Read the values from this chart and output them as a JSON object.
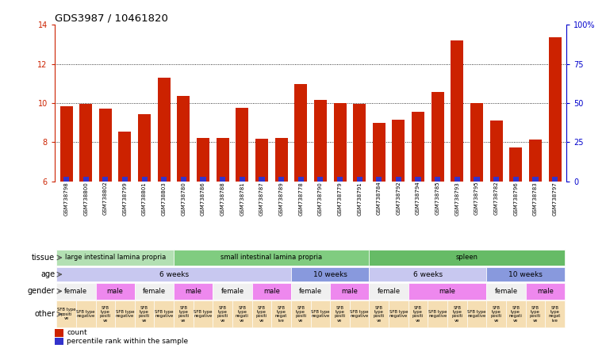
{
  "title": "GDS3987 / 10461820",
  "samples": [
    "GSM738798",
    "GSM738800",
    "GSM738802",
    "GSM738799",
    "GSM738801",
    "GSM738803",
    "GSM738780",
    "GSM738786",
    "GSM738788",
    "GSM738781",
    "GSM738787",
    "GSM738789",
    "GSM738778",
    "GSM738790",
    "GSM738779",
    "GSM738791",
    "GSM738784",
    "GSM738792",
    "GSM738794",
    "GSM738785",
    "GSM738793",
    "GSM738795",
    "GSM738782",
    "GSM738796",
    "GSM738783",
    "GSM738797"
  ],
  "count_values": [
    9.85,
    9.95,
    9.72,
    8.55,
    9.45,
    11.3,
    10.35,
    8.22,
    8.22,
    9.75,
    8.18,
    8.22,
    10.95,
    10.18,
    10.0,
    9.95,
    9.0,
    9.15,
    9.55,
    10.55,
    13.2,
    9.98,
    9.1,
    7.75,
    8.15,
    13.35
  ],
  "percentile_heights": [
    0.18,
    0.18,
    0.18,
    0.18,
    0.18,
    0.18,
    0.18,
    0.18,
    0.18,
    0.18,
    0.18,
    0.18,
    0.18,
    0.18,
    0.18,
    0.18,
    0.18,
    0.18,
    0.18,
    0.18,
    0.18,
    0.18,
    0.18,
    0.18,
    0.18,
    0.18
  ],
  "ylim": [
    6,
    14
  ],
  "yticks": [
    6,
    8,
    10,
    12,
    14
  ],
  "right_yticks": [
    0,
    25,
    50,
    75,
    100
  ],
  "bar_color": "#cc2200",
  "percentile_color": "#3333cc",
  "tissue_groups": [
    {
      "label": "large intestinal lamina propria",
      "start": 0,
      "end": 5,
      "color": "#b3e0b3"
    },
    {
      "label": "small intestinal lamina propria",
      "start": 6,
      "end": 15,
      "color": "#80cc80"
    },
    {
      "label": "spleen",
      "start": 16,
      "end": 25,
      "color": "#66bb66"
    }
  ],
  "age_groups": [
    {
      "label": "6 weeks",
      "start": 0,
      "end": 11,
      "color": "#c8c8f0"
    },
    {
      "label": "10 weeks",
      "start": 12,
      "end": 15,
      "color": "#8899dd"
    },
    {
      "label": "6 weeks",
      "start": 16,
      "end": 21,
      "color": "#c8c8f0"
    },
    {
      "label": "10 weeks",
      "start": 22,
      "end": 25,
      "color": "#8899dd"
    }
  ],
  "gender_groups": [
    {
      "label": "female",
      "start": 0,
      "end": 1,
      "color": "#f0f0f0"
    },
    {
      "label": "male",
      "start": 2,
      "end": 3,
      "color": "#ee88ee"
    },
    {
      "label": "female",
      "start": 4,
      "end": 5,
      "color": "#f0f0f0"
    },
    {
      "label": "male",
      "start": 6,
      "end": 7,
      "color": "#ee88ee"
    },
    {
      "label": "female",
      "start": 8,
      "end": 9,
      "color": "#f0f0f0"
    },
    {
      "label": "male",
      "start": 10,
      "end": 11,
      "color": "#ee88ee"
    },
    {
      "label": "female",
      "start": 12,
      "end": 13,
      "color": "#f0f0f0"
    },
    {
      "label": "male",
      "start": 14,
      "end": 15,
      "color": "#ee88ee"
    },
    {
      "label": "female",
      "start": 16,
      "end": 17,
      "color": "#f0f0f0"
    },
    {
      "label": "male",
      "start": 18,
      "end": 21,
      "color": "#ee88ee"
    },
    {
      "label": "female",
      "start": 22,
      "end": 23,
      "color": "#f0f0f0"
    },
    {
      "label": "male",
      "start": 24,
      "end": 25,
      "color": "#ee88ee"
    }
  ],
  "other_groups": [
    {
      "label": "SFB type\npositi\nve",
      "start": 0,
      "end": 0,
      "color": "#f5deb3"
    },
    {
      "label": "SFB type\nnegative",
      "start": 1,
      "end": 1,
      "color": "#f5deb3"
    },
    {
      "label": "SFB\ntype\npositi\nve",
      "start": 2,
      "end": 2,
      "color": "#f5deb3"
    },
    {
      "label": "SFB type\nnegative",
      "start": 3,
      "end": 3,
      "color": "#f5deb3"
    },
    {
      "label": "SFB\ntype\npositi\nve",
      "start": 4,
      "end": 4,
      "color": "#f5deb3"
    },
    {
      "label": "SFB type\nnegative",
      "start": 5,
      "end": 5,
      "color": "#f5deb3"
    },
    {
      "label": "SFB\ntype\npositi\nve",
      "start": 6,
      "end": 6,
      "color": "#f5deb3"
    },
    {
      "label": "SFB type\nnegative",
      "start": 7,
      "end": 7,
      "color": "#f5deb3"
    },
    {
      "label": "SFB\ntype\npositi\nve",
      "start": 8,
      "end": 8,
      "color": "#f5deb3"
    },
    {
      "label": "SFB\ntype\nnegati\nve",
      "start": 9,
      "end": 9,
      "color": "#f5deb3"
    },
    {
      "label": "SFB\ntype\npositi\nve",
      "start": 10,
      "end": 10,
      "color": "#f5deb3"
    },
    {
      "label": "SFB\ntype\nnegat\nive",
      "start": 11,
      "end": 11,
      "color": "#f5deb3"
    },
    {
      "label": "SFB\ntype\npositi\nve",
      "start": 12,
      "end": 12,
      "color": "#f5deb3"
    },
    {
      "label": "SFB type\nnegative",
      "start": 13,
      "end": 13,
      "color": "#f5deb3"
    },
    {
      "label": "SFB\ntype\npositi\nve",
      "start": 14,
      "end": 14,
      "color": "#f5deb3"
    },
    {
      "label": "SFB type\nnegative",
      "start": 15,
      "end": 15,
      "color": "#f5deb3"
    },
    {
      "label": "SFB\ntype\npositi\nve",
      "start": 16,
      "end": 16,
      "color": "#f5deb3"
    },
    {
      "label": "SFB type\nnegative",
      "start": 17,
      "end": 17,
      "color": "#f5deb3"
    },
    {
      "label": "SFB\ntype\npositi\nve",
      "start": 18,
      "end": 18,
      "color": "#f5deb3"
    },
    {
      "label": "SFB type\nnegative",
      "start": 19,
      "end": 19,
      "color": "#f5deb3"
    },
    {
      "label": "SFB\ntype\npositi\nve",
      "start": 20,
      "end": 20,
      "color": "#f5deb3"
    },
    {
      "label": "SFB type\nnegative",
      "start": 21,
      "end": 21,
      "color": "#f5deb3"
    },
    {
      "label": "SFB\ntype\npositi\nve",
      "start": 22,
      "end": 22,
      "color": "#f5deb3"
    },
    {
      "label": "SFB\ntype\nnegati\nve",
      "start": 23,
      "end": 23,
      "color": "#f5deb3"
    },
    {
      "label": "SFB\ntype\npositi\nve",
      "start": 24,
      "end": 24,
      "color": "#f5deb3"
    },
    {
      "label": "SFB\ntype\nnegat\nive",
      "start": 25,
      "end": 25,
      "color": "#f5deb3"
    }
  ],
  "row_labels": [
    "tissue",
    "age",
    "gender",
    "other"
  ],
  "background_color": "#ffffff",
  "axis_color_left": "#cc2200",
  "axis_color_right": "#0000cc",
  "label_font_size": 7,
  "bar_font_size": 5,
  "tick_font_size": 7
}
